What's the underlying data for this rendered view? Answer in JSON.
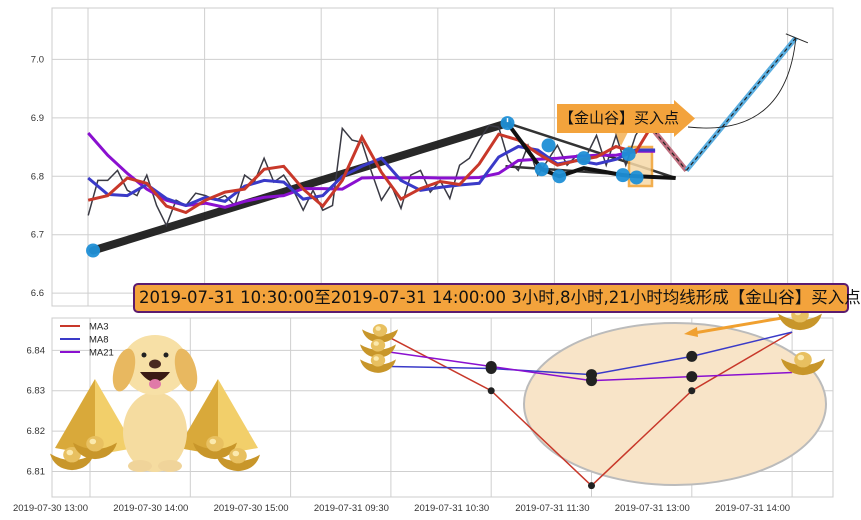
{
  "chart_data": [
    {
      "type": "line",
      "panel": "top",
      "y_ticks": [
        "6.6",
        "6.7",
        "6.8",
        "6.9",
        "7.0"
      ],
      "y_tick_values": [
        6.6,
        6.7,
        6.8,
        6.9,
        7.0
      ],
      "ylim": [
        6.578,
        7.088
      ],
      "xlim": [
        -3.7,
        76.2
      ],
      "grid": true,
      "colors": {
        "close": "#3a3a44",
        "ma3": "#c8382a",
        "ma8": "#3a3ac8",
        "ma21": "#8a10d0",
        "trend": "#111111",
        "pivot": "#1f8fd6",
        "projection_down": "#c07080",
        "projection_up": "#5aaee0"
      },
      "close": [
        6.733,
        6.793,
        6.793,
        6.81,
        6.776,
        6.767,
        6.802,
        6.75,
        6.716,
        6.759,
        6.75,
        6.771,
        6.767,
        6.759,
        6.767,
        6.75,
        6.802,
        6.79,
        6.831,
        6.79,
        6.802,
        6.776,
        6.742,
        6.776,
        6.742,
        6.75,
        6.882,
        6.862,
        6.858,
        6.807,
        6.759,
        6.785,
        6.745,
        6.802,
        6.81,
        6.773,
        6.793,
        6.762,
        6.819,
        6.831,
        6.862,
        6.887,
        6.884,
        6.827,
        6.81,
        6.853,
        6.802,
        6.827,
        6.853,
        6.819,
        6.836,
        6.836,
        6.87,
        6.819,
        6.87,
        6.819,
        6.87,
        6.896
      ],
      "ma_x": [
        0,
        2,
        4,
        6,
        8,
        10,
        12,
        14,
        16,
        18,
        20,
        22,
        24,
        26,
        28,
        30,
        32,
        34,
        36,
        38,
        40,
        42,
        44,
        46,
        48,
        50,
        52,
        54,
        56,
        58
      ],
      "ma3": [
        6.759,
        6.767,
        6.797,
        6.788,
        6.749,
        6.738,
        6.759,
        6.773,
        6.778,
        6.812,
        6.817,
        6.778,
        6.749,
        6.793,
        6.867,
        6.807,
        6.761,
        6.779,
        6.791,
        6.786,
        6.821,
        6.872,
        6.862,
        6.839,
        6.819,
        6.827,
        6.833,
        6.851,
        6.841,
        6.896
      ],
      "ma8": [
        6.797,
        6.769,
        6.767,
        6.786,
        6.762,
        6.75,
        6.764,
        6.757,
        6.783,
        6.793,
        6.79,
        6.761,
        6.767,
        6.8,
        6.817,
        6.831,
        6.793,
        6.776,
        6.781,
        6.785,
        6.788,
        6.833,
        6.851,
        6.845,
        6.821,
        6.827,
        6.821,
        6.829,
        6.845,
        6.845
      ],
      "ma21": [
        6.874,
        6.836,
        6.805,
        6.778,
        6.759,
        6.75,
        6.754,
        6.747,
        6.757,
        6.764,
        6.767,
        6.779,
        6.779,
        6.778,
        6.797,
        6.798,
        6.797,
        6.798,
        6.797,
        6.797,
        6.798,
        6.805,
        6.827,
        6.829,
        6.831,
        6.834,
        6.836,
        6.836,
        6.843,
        6.843
      ],
      "trend_line": [
        [
          0.5,
          6.673
        ],
        [
          42.9,
          6.891
        ]
      ],
      "pattern_path": [
        [
          42.9,
          6.891
        ],
        [
          46.4,
          6.812
        ],
        [
          48.2,
          6.8
        ],
        [
          50.7,
          6.814
        ],
        [
          54.7,
          6.802
        ],
        [
          56.1,
          6.8
        ],
        [
          60.1,
          6.797
        ]
      ],
      "triangle_upper": [
        [
          42.9,
          6.891
        ],
        [
          60.1,
          6.797
        ]
      ],
      "triangle_lower": [
        [
          42.7,
          6.817
        ],
        [
          60.1,
          6.797
        ]
      ],
      "pivots": [
        [
          0.5,
          6.673
        ],
        [
          42.9,
          6.891
        ],
        [
          46.4,
          6.812
        ],
        [
          47.1,
          6.853
        ],
        [
          48.2,
          6.8
        ],
        [
          50.7,
          6.831
        ],
        [
          54.7,
          6.802
        ],
        [
          55.3,
          6.838
        ],
        [
          56.1,
          6.798
        ]
      ],
      "projection": [
        [
          57.0,
          6.896
        ],
        [
          61.2,
          6.81
        ],
        [
          72.4,
          7.037
        ]
      ],
      "callout": "【金山谷】买入点"
    },
    {
      "type": "line",
      "panel": "bottom",
      "categories": [
        "2019-07-30 13:00",
        "2019-07-30 14:00",
        "2019-07-30 15:00",
        "2019-07-31 09:30",
        "2019-07-31 10:30",
        "2019-07-31 11:30",
        "2019-07-31 13:00",
        "2019-07-31 14:00"
      ],
      "y_ticks": [
        "6.81",
        "6.82",
        "6.83",
        "6.84"
      ],
      "y_tick_values": [
        6.81,
        6.82,
        6.83,
        6.84
      ],
      "ylim": [
        6.8037,
        6.848
      ],
      "grid": true,
      "legend_placement": "top-left",
      "series": [
        {
          "name": "MA3",
          "color": "#c8382a",
          "values": [
            null,
            null,
            null,
            6.843,
            6.83,
            6.8065,
            6.83,
            6.8445
          ]
        },
        {
          "name": "MA8",
          "color": "#3a3ac8",
          "values": [
            null,
            null,
            null,
            6.836,
            6.8355,
            6.834,
            6.8385,
            6.8445
          ]
        },
        {
          "name": "MA21",
          "color": "#8a10d0",
          "values": [
            null,
            null,
            null,
            6.8395,
            6.836,
            6.8325,
            6.8335,
            6.8345
          ]
        }
      ]
    }
  ],
  "banner": "2019-07-31 10:30:00至2019-07-31 14:00:00 3小时,8小时,21小时均线形成【金山谷】买入点",
  "colors": {
    "banner_fill": "#f3a33c",
    "banner_border": "#5b1b6e",
    "highlight": "#f0a030",
    "ellipse_fill": "#f8e4c8"
  }
}
